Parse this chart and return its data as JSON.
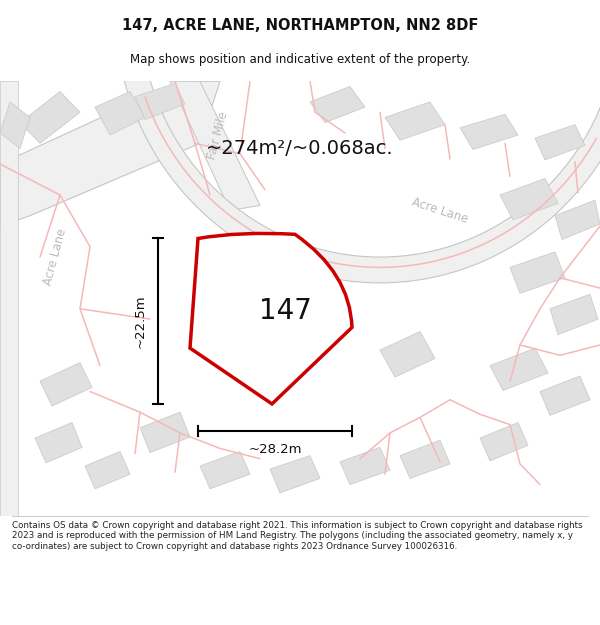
{
  "title": "147, ACRE LANE, NORTHAMPTON, NN2 8DF",
  "subtitle": "Map shows position and indicative extent of the property.",
  "area_text": "~274m²/~0.068ac.",
  "label_147": "147",
  "dim_width": "~28.2m",
  "dim_height": "~22.5m",
  "footer": "Contains OS data © Crown copyright and database right 2021. This information is subject to Crown copyright and database rights 2023 and is reproduced with the permission of HM Land Registry. The polygons (including the associated geometry, namely x, y co-ordinates) are subject to Crown copyright and database rights 2023 Ordnance Survey 100026316.",
  "map_bg": "#ffffff",
  "road_fill": "#e8e8e8",
  "road_stroke": "#cccccc",
  "property_color": "#cc0000",
  "street_label_color": "#bbbbbb",
  "pink_line_color": "#f5b8b8",
  "block_fill": "#e0e0e0",
  "block_stroke": "#cccccc",
  "title_color": "#111111",
  "footer_color": "#222222"
}
